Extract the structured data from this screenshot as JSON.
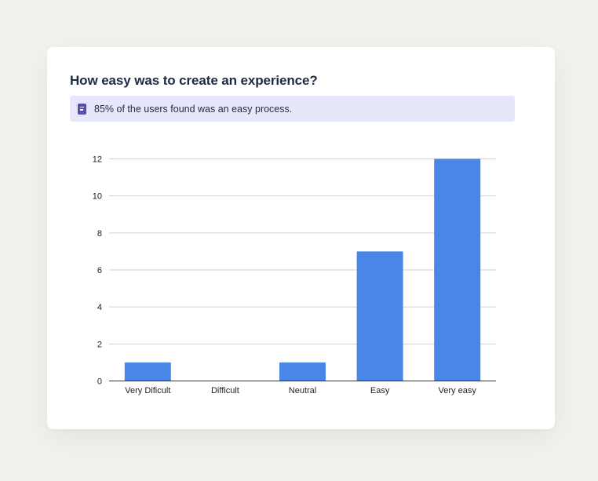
{
  "card": {
    "title": "How easy was to create an experience?",
    "callout": {
      "icon": "document-icon",
      "text": "85% of the users found was an easy process."
    }
  },
  "colors": {
    "bar": "#4a86e8",
    "callout_bg": "#e7e7fb",
    "callout_icon": "#5a4bb8",
    "title": "#1e2a44"
  },
  "chart_data": {
    "type": "bar",
    "title": "",
    "xlabel": "",
    "ylabel": "",
    "categories": [
      "Very Dificult",
      "Difficult",
      "Neutral",
      "Easy",
      "Very easy"
    ],
    "values": [
      1,
      0,
      1,
      7,
      12
    ],
    "ylim": [
      0,
      12
    ],
    "yticks": [
      0,
      2,
      4,
      6,
      8,
      10,
      12
    ],
    "grid": true,
    "legend": "none"
  }
}
